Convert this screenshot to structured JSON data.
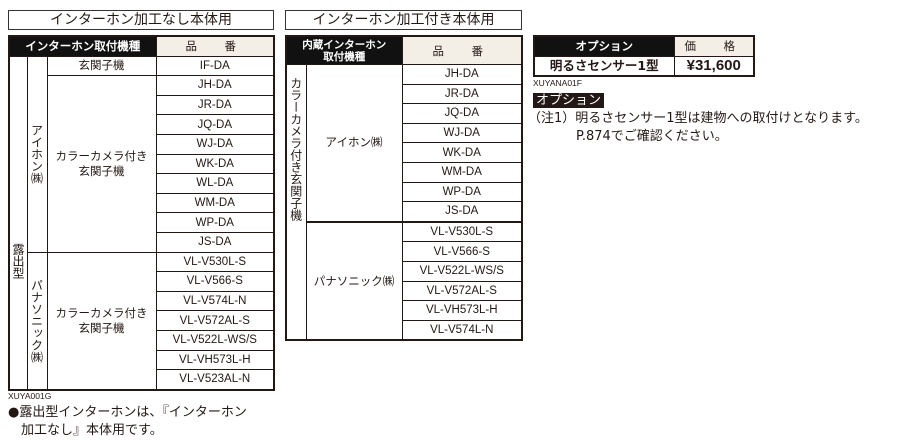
{
  "left": {
    "title": "インターホン加工なし本体用",
    "header_type": "インターホン取付機種",
    "header_part": "品　番",
    "mount": "露出型",
    "aiphone": "アイホン㈱",
    "panasonic": "パナソニック㈱",
    "entry": "玄関子機",
    "camera_entry_1": "カラーカメラ付き",
    "camera_entry_2": "玄関子機",
    "if_part": "IF-DA",
    "aiphone_parts": [
      "JH-DA",
      "JR-DA",
      "JQ-DA",
      "WJ-DA",
      "WK-DA",
      "WL-DA",
      "WM-DA",
      "WP-DA",
      "JS-DA"
    ],
    "panasonic_parts": [
      "VL-V530L-S",
      "VL-V566-S",
      "VL-V574L-N",
      "VL-V572AL-S",
      "VL-V522L-WS/S",
      "VL-VH573L-H",
      "VL-V523AL-N"
    ],
    "code": "XUYA001G",
    "note_1": "●露出型インターホンは、『インターホン",
    "note_2": "　加工なし』本体用です。"
  },
  "middle": {
    "title": "インターホン加工付き本体用",
    "header_type_1": "内蔵インターホン",
    "header_type_2": "取付機種",
    "header_part": "品　番",
    "category": "カラーカメラ付き玄関子機",
    "aiphone": "アイホン㈱",
    "panasonic": "パナソニック㈱",
    "aiphone_parts": [
      "JH-DA",
      "JR-DA",
      "JQ-DA",
      "WJ-DA",
      "WK-DA",
      "WM-DA",
      "WP-DA",
      "JS-DA"
    ],
    "panasonic_parts": [
      "VL-V530L-S",
      "VL-V566-S",
      "VL-V522L-WS/S",
      "VL-V572AL-S",
      "VL-VH573L-H",
      "VL-V574L-N"
    ]
  },
  "option": {
    "header_name": "オプション",
    "header_price": "価　格",
    "name": "明るさセンサー1型",
    "price": "¥31,600",
    "code": "XUYANA01F",
    "badge": "オプション",
    "note_1": "（注1）明るさセンサー1型は建物への取付けとなります。",
    "note_2": "P.874でご確認ください。"
  }
}
